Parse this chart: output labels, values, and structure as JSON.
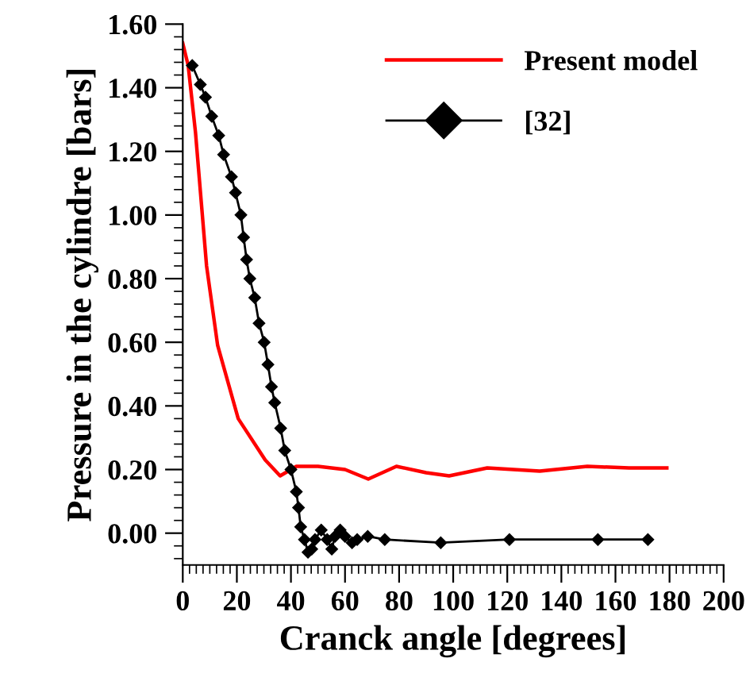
{
  "chart_data": {
    "type": "line",
    "xlabel": "Cranck angle [degrees]",
    "ylabel": "Pressure in the cylindre [bars]",
    "xlim": [
      0,
      200
    ],
    "xticks": [
      0,
      20,
      40,
      60,
      80,
      100,
      120,
      140,
      160,
      180,
      200
    ],
    "ylim": [
      -0.1,
      1.6
    ],
    "yticks": [
      {
        "value": 0,
        "label": "0.00"
      },
      {
        "value": 0.2,
        "label": "0.20"
      },
      {
        "value": 0.4,
        "label": "0.40"
      },
      {
        "value": 0.6,
        "label": "0.60"
      },
      {
        "value": 0.8,
        "label": "0.80"
      },
      {
        "value": 1.0,
        "label": "1.00"
      },
      {
        "value": 1.2,
        "label": "1.20"
      },
      {
        "value": 1.4,
        "label": "1.40"
      },
      {
        "value": 1.6,
        "label": "1.60"
      }
    ],
    "grid": false,
    "legend": "top right",
    "series": [
      {
        "name": "Present model",
        "color": "#ff0000",
        "marker": "none",
        "x": [
          0,
          2,
          4.7,
          8.8,
          12.9,
          20.5,
          30.5,
          36,
          42,
          50,
          60,
          68.6,
          79,
          90,
          98.5,
          112.6,
          132,
          149.6,
          165,
          179
        ],
        "values": [
          1.54,
          1.47,
          1.26,
          0.84,
          0.59,
          0.36,
          0.23,
          0.18,
          0.21,
          0.21,
          0.2,
          0.17,
          0.21,
          0.19,
          0.18,
          0.205,
          0.195,
          0.21,
          0.205,
          0.205
        ]
      },
      {
        "name": "[32]",
        "color": "#000000",
        "marker": "diamond",
        "x": [
          3.5,
          6.5,
          8.4,
          10.7,
          13.3,
          15.1,
          18,
          19.5,
          21.5,
          22.5,
          23.6,
          24.8,
          26.6,
          28.2,
          30.1,
          31.5,
          32.8,
          34,
          36.2,
          37.7,
          40,
          42,
          42.8,
          43.6,
          45,
          46.3,
          47.7,
          48.9,
          51.2,
          53.4,
          55.1,
          56.3,
          58.2,
          60,
          62.6,
          64.5,
          68.4,
          74.7,
          95.4,
          120.8,
          153.5,
          172
        ],
        "values": [
          1.47,
          1.41,
          1.37,
          1.31,
          1.25,
          1.19,
          1.12,
          1.07,
          1.0,
          0.93,
          0.86,
          0.8,
          0.74,
          0.66,
          0.6,
          0.53,
          0.46,
          0.41,
          0.33,
          0.26,
          0.2,
          0.13,
          0.08,
          0.02,
          -0.02,
          -0.06,
          -0.05,
          -0.02,
          0.01,
          -0.02,
          -0.05,
          -0.01,
          0.01,
          -0.01,
          -0.03,
          -0.02,
          -0.01,
          -0.02,
          -0.03,
          -0.02,
          -0.02,
          -0.02
        ]
      }
    ]
  }
}
